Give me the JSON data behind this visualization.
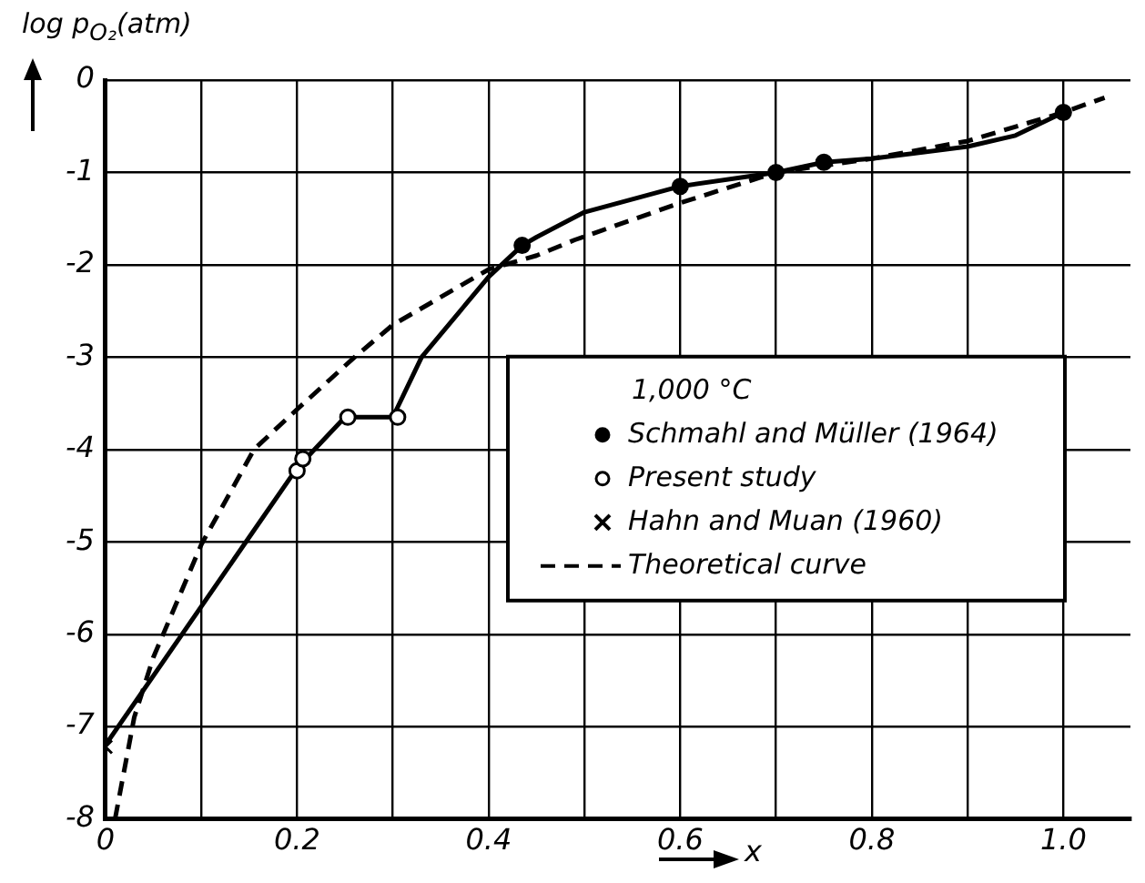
{
  "chart_data": {
    "type": "line",
    "xlabel": "x",
    "ylabel": "log p$_{O₂}$(atm)",
    "legend_title": "1,000 °C",
    "xlim": [
      0,
      1.07
    ],
    "ylim": [
      -8,
      0
    ],
    "xticks": [
      0,
      {
        "value": 0.1,
        "label": null
      },
      0.2,
      {
        "value": 0.3,
        "label": null
      },
      0.4,
      {
        "value": 0.5,
        "label": null
      },
      0.6,
      {
        "value": 0.7,
        "label": null
      },
      0.8,
      {
        "value": 0.9,
        "label": null
      },
      {
        "value": 1.0,
        "label": "1.0"
      }
    ],
    "yticks": [
      -8,
      -7,
      -6,
      -5,
      -4,
      -3,
      -2,
      -1,
      0
    ],
    "grid": true,
    "legend": "right",
    "series": [
      {
        "color": "#000000",
        "marker": "none",
        "line_style": "solid",
        "x": [
          0,
          0.2,
          0.25,
          0.3,
          0.33,
          0.4,
          0.435,
          0.45,
          0.5,
          0.6,
          0.7,
          0.75,
          0.8,
          0.9,
          0.95,
          1.0
        ],
        "values": [
          -7.2,
          -4.2,
          -3.65,
          -3.65,
          -3.0,
          -2.13,
          -1.79,
          -1.7,
          -1.43,
          -1.15,
          -1.0,
          -0.89,
          -0.85,
          -0.72,
          -0.6,
          -0.35
        ]
      },
      {
        "type": "scatter",
        "name": "Schmahl and Müller (1964)",
        "color": "#000000",
        "marker": "circle",
        "x": [
          0.435,
          0.6,
          0.7,
          0.75,
          1.0
        ],
        "values": [
          -1.79,
          -1.15,
          -1.0,
          -0.89,
          -0.35
        ]
      },
      {
        "type": "scatter",
        "name": "Present study",
        "color": "#ffffff",
        "marker": "circle",
        "x": [
          0.2,
          0.206,
          0.253,
          0.305
        ],
        "values": [
          -4.23,
          -4.1,
          -3.65,
          -3.65
        ]
      },
      {
        "type": "scatter",
        "name": "Hahn and Muan (1960)",
        "color": "#000000",
        "marker": "cross",
        "x": [
          0
        ],
        "values": [
          -7.22
        ]
      },
      {
        "name": "Theoretical curve",
        "color": "#000000",
        "marker": "none",
        "line_style": "dashed",
        "x": [
          0.01,
          0.03,
          0.05,
          0.1,
          0.155,
          0.19,
          0.26,
          0.3,
          0.4,
          0.45,
          0.49,
          0.6,
          0.7,
          0.8,
          0.9,
          1.0,
          1.043
        ],
        "values": [
          -8,
          -6.9,
          -6.25,
          -5.03,
          -4.0,
          -3.66,
          -3.0,
          -2.65,
          -2.05,
          -1.9,
          -1.73,
          -1.33,
          -1.0,
          -0.85,
          -0.66,
          -0.35,
          -0.19
        ]
      }
    ]
  }
}
